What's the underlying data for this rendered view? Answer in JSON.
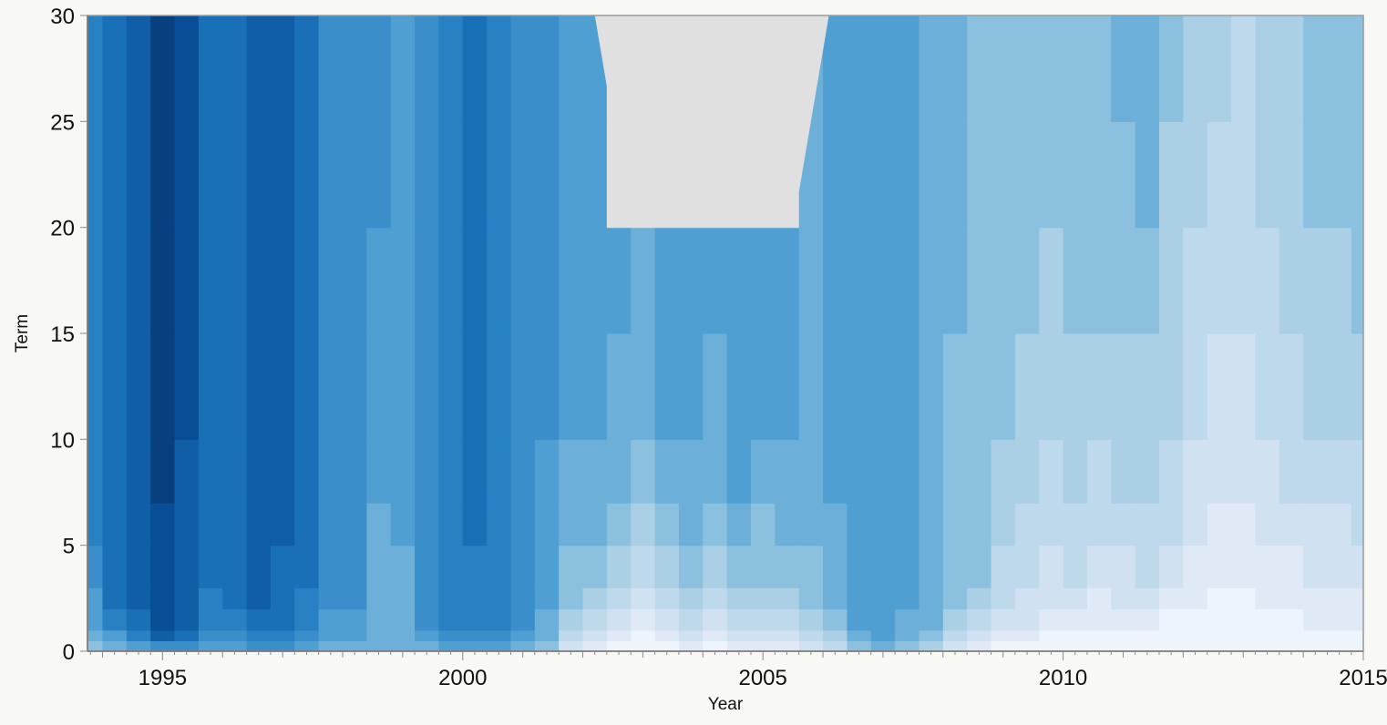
{
  "chart_data": {
    "type": "heatmap",
    "title": "",
    "xlabel": "Year",
    "ylabel": "Term",
    "xlim": [
      1993.75,
      2015
    ],
    "ylim": [
      0,
      30
    ],
    "x_ticks": [
      1995,
      2000,
      2005,
      2010,
      2015
    ],
    "y_ticks": [
      0,
      5,
      10,
      15,
      20,
      25,
      30
    ],
    "grid": false,
    "legend": "none",
    "colormap": [
      "#eef4fb",
      "#dfeaf6",
      "#d0e2f1",
      "#bfd9ec",
      "#abd0e6",
      "#8bc0df",
      "#6cafd8",
      "#4f9fd2",
      "#3a8fca",
      "#2781c3",
      "#1970b6",
      "#0f5ea6",
      "#084e96",
      "#073f7f"
    ],
    "missing_color": "#e0e0e0",
    "column_years": [
      1993.8,
      1994.2,
      1994.6,
      1995.0,
      1995.4,
      1995.8,
      1996.2,
      1996.6,
      1997.0,
      1997.4,
      1997.8,
      1998.2,
      1998.6,
      1999.0,
      1999.4,
      1999.8,
      2000.2,
      2000.6,
      2001.0,
      2001.4,
      2001.8,
      2002.2,
      2002.6,
      2003.0,
      2003.4,
      2003.8,
      2004.2,
      2004.6,
      2005.0,
      2005.4,
      2005.8,
      2006.2,
      2006.6,
      2007.0,
      2007.4,
      2007.8,
      2008.2,
      2008.6,
      2009.0,
      2009.4,
      2009.8,
      2010.2,
      2010.6,
      2011.0,
      2011.4,
      2011.8,
      2012.2,
      2012.6,
      2013.0,
      2013.4,
      2013.8,
      2014.2,
      2014.6,
      2015.0
    ],
    "term_bands": [
      0,
      0.5,
      1,
      2,
      3,
      5,
      7,
      10,
      15,
      20,
      25,
      30
    ],
    "levels": [
      [
        5,
        6,
        7,
        7,
        8,
        9,
        9,
        9,
        9,
        9,
        9
      ],
      [
        6,
        7,
        9,
        10,
        10,
        10,
        10,
        10,
        10,
        10,
        10
      ],
      [
        7,
        9,
        10,
        11,
        11,
        11,
        11,
        11,
        11,
        11,
        11
      ],
      [
        8,
        11,
        12,
        12,
        12,
        12,
        13,
        13,
        13,
        13,
        13
      ],
      [
        8,
        10,
        11,
        11,
        11,
        11,
        11,
        12,
        12,
        12,
        12
      ],
      [
        7,
        8,
        9,
        9,
        10,
        10,
        10,
        10,
        10,
        10,
        10
      ],
      [
        7,
        8,
        9,
        10,
        10,
        10,
        10,
        10,
        10,
        10,
        10
      ],
      [
        8,
        9,
        10,
        11,
        11,
        11,
        11,
        11,
        11,
        11,
        11
      ],
      [
        8,
        9,
        10,
        10,
        10,
        11,
        11,
        11,
        11,
        11,
        11
      ],
      [
        7,
        8,
        9,
        9,
        10,
        10,
        10,
        10,
        10,
        10,
        10
      ],
      [
        6,
        7,
        7,
        8,
        8,
        8,
        8,
        8,
        8,
        8,
        8
      ],
      [
        6,
        7,
        7,
        8,
        8,
        8,
        8,
        8,
        8,
        8,
        8
      ],
      [
        6,
        6,
        6,
        6,
        6,
        6,
        7,
        7,
        7,
        8,
        8
      ],
      [
        6,
        6,
        6,
        6,
        6,
        7,
        7,
        7,
        7,
        7,
        7
      ],
      [
        6,
        7,
        8,
        8,
        8,
        8,
        8,
        8,
        8,
        8,
        8
      ],
      [
        7,
        8,
        9,
        9,
        9,
        9,
        9,
        9,
        9,
        9,
        9
      ],
      [
        7,
        8,
        9,
        9,
        9,
        10,
        10,
        10,
        10,
        10,
        10
      ],
      [
        7,
        8,
        9,
        9,
        9,
        9,
        9,
        9,
        9,
        9,
        9
      ],
      [
        6,
        7,
        8,
        8,
        8,
        8,
        8,
        8,
        8,
        8,
        8
      ],
      [
        5,
        6,
        6,
        7,
        7,
        7,
        7,
        8,
        8,
        8,
        8
      ],
      [
        2,
        3,
        4,
        5,
        5,
        6,
        6,
        7,
        7,
        7,
        7
      ],
      [
        1,
        2,
        3,
        4,
        5,
        6,
        6,
        7,
        7,
        7,
        7
      ],
      [
        0,
        1,
        2,
        3,
        4,
        5,
        6,
        6,
        7,
        null,
        null
      ],
      [
        0,
        0,
        1,
        2,
        3,
        4,
        5,
        6,
        6,
        null,
        null
      ],
      [
        0,
        1,
        2,
        3,
        4,
        5,
        6,
        7,
        7,
        null,
        null
      ],
      [
        1,
        2,
        3,
        4,
        5,
        6,
        6,
        7,
        7,
        null,
        null
      ],
      [
        0,
        1,
        2,
        3,
        4,
        5,
        6,
        6,
        7,
        null,
        null
      ],
      [
        1,
        2,
        3,
        4,
        5,
        6,
        7,
        7,
        7,
        null,
        null
      ],
      [
        1,
        2,
        3,
        4,
        5,
        5,
        6,
        7,
        7,
        null,
        null
      ],
      [
        1,
        2,
        3,
        4,
        5,
        6,
        6,
        7,
        7,
        null,
        null
      ],
      [
        2,
        3,
        4,
        5,
        5,
        6,
        6,
        6,
        6,
        6,
        6
      ],
      [
        3,
        4,
        5,
        6,
        6,
        6,
        7,
        7,
        7,
        7,
        7
      ],
      [
        5,
        6,
        7,
        7,
        7,
        7,
        7,
        7,
        7,
        7,
        7
      ],
      [
        6,
        7,
        7,
        7,
        7,
        7,
        7,
        7,
        7,
        7,
        7
      ],
      [
        5,
        6,
        6,
        7,
        7,
        7,
        7,
        7,
        7,
        7,
        7
      ],
      [
        4,
        5,
        6,
        6,
        6,
        6,
        6,
        6,
        6,
        6,
        6
      ],
      [
        2,
        3,
        4,
        5,
        5,
        5,
        5,
        5,
        6,
        6,
        6
      ],
      [
        1,
        2,
        3,
        4,
        5,
        5,
        5,
        5,
        5,
        5,
        5
      ],
      [
        0,
        1,
        2,
        3,
        3,
        4,
        4,
        5,
        5,
        5,
        5
      ],
      [
        0,
        1,
        2,
        2,
        3,
        3,
        4,
        4,
        5,
        5,
        5
      ],
      [
        0,
        0,
        1,
        2,
        2,
        3,
        3,
        4,
        4,
        5,
        5
      ],
      [
        0,
        0,
        1,
        2,
        3,
        3,
        4,
        4,
        5,
        5,
        5
      ],
      [
        0,
        0,
        1,
        1,
        2,
        3,
        3,
        4,
        5,
        5,
        5
      ],
      [
        0,
        0,
        1,
        2,
        2,
        3,
        4,
        4,
        5,
        5,
        6
      ],
      [
        0,
        0,
        1,
        2,
        3,
        3,
        4,
        4,
        5,
        6,
        6
      ],
      [
        0,
        0,
        0,
        1,
        2,
        3,
        3,
        4,
        4,
        4,
        5
      ],
      [
        0,
        0,
        0,
        1,
        1,
        2,
        2,
        3,
        3,
        4,
        4
      ],
      [
        0,
        0,
        0,
        0,
        1,
        1,
        2,
        2,
        3,
        3,
        4
      ],
      [
        0,
        0,
        0,
        0,
        1,
        1,
        2,
        2,
        3,
        3,
        3
      ],
      [
        0,
        0,
        0,
        1,
        1,
        2,
        2,
        3,
        3,
        4,
        4
      ],
      [
        0,
        0,
        0,
        1,
        1,
        2,
        3,
        3,
        4,
        4,
        4
      ],
      [
        0,
        0,
        1,
        1,
        2,
        2,
        3,
        4,
        4,
        5,
        5
      ],
      [
        0,
        0,
        1,
        1,
        2,
        2,
        3,
        4,
        4,
        5,
        5
      ],
      [
        0,
        0,
        1,
        1,
        2,
        3,
        3,
        4,
        5,
        5,
        5
      ]
    ],
    "missing_region": {
      "year_top": [
        2002.2,
        2006.1
      ],
      "year_bottom": [
        2002.8,
        2005.5
      ],
      "term": [
        20,
        30
      ]
    }
  }
}
